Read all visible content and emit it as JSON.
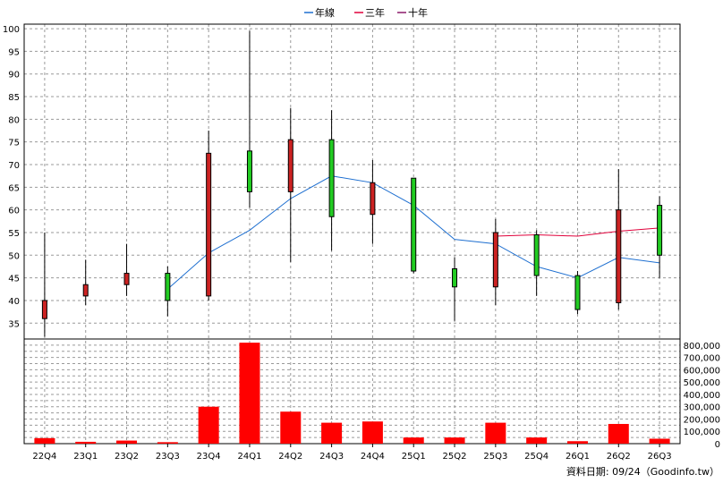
{
  "chart_data": {
    "type": "candlestick-with-volume",
    "legend": [
      {
        "label": "年線",
        "color": "#1e6fd0"
      },
      {
        "label": "三年",
        "color": "#e0003a"
      },
      {
        "label": "十年",
        "color": "#8a1a6a"
      }
    ],
    "legend_placement": "top-center",
    "grid": true,
    "categories": [
      "22Q4",
      "23Q1",
      "23Q2",
      "23Q3",
      "23Q4",
      "24Q1",
      "24Q2",
      "24Q3",
      "24Q4",
      "25Q1",
      "25Q2",
      "25Q3",
      "25Q4",
      "26Q1",
      "26Q2",
      "26Q3"
    ],
    "price_axis": {
      "ylim": [
        31.5,
        101
      ],
      "ticks": [
        35,
        40,
        45,
        50,
        55,
        60,
        65,
        70,
        75,
        80,
        85,
        90,
        95,
        100
      ]
    },
    "volume_axis": {
      "ylim": [
        0,
        850000
      ],
      "ticks": [
        0,
        100000,
        200000,
        300000,
        400000,
        500000,
        600000,
        700000,
        800000
      ],
      "tick_labels": [
        "0",
        "100,000",
        "200,000",
        "300,000",
        "400,000",
        "500,000",
        "600,000",
        "700,000",
        "800,000"
      ]
    },
    "candles": [
      {
        "open": 40,
        "close": 36,
        "high": 55,
        "low": 32
      },
      {
        "open": 43.5,
        "close": 41,
        "high": 49,
        "low": 39
      },
      {
        "open": 46,
        "close": 43.5,
        "high": 52.5,
        "low": 41
      },
      {
        "open": 40,
        "close": 46,
        "high": 47.5,
        "low": 36.5
      },
      {
        "open": 72.5,
        "close": 41,
        "high": 77.5,
        "low": 40
      },
      {
        "open": 64,
        "close": 73,
        "high": 99.5,
        "low": 60.5
      },
      {
        "open": 75.5,
        "close": 64,
        "high": 82.5,
        "low": 48.5
      },
      {
        "open": 58.5,
        "close": 75.5,
        "high": 82,
        "low": 51
      },
      {
        "open": 66,
        "close": 59,
        "high": 71,
        "low": 52.5
      },
      {
        "open": 46.5,
        "close": 67,
        "high": 67,
        "low": 46
      },
      {
        "open": 43,
        "close": 47,
        "high": 49.5,
        "low": 35.5
      },
      {
        "open": 55,
        "close": 43,
        "high": 58,
        "low": 39
      },
      {
        "open": 45.5,
        "close": 54.5,
        "high": 55.5,
        "low": 41
      },
      {
        "open": 38,
        "close": 45.5,
        "high": 46.5,
        "low": 37
      },
      {
        "open": 60,
        "close": 39.5,
        "high": 69,
        "low": 38
      },
      {
        "open": 50,
        "close": 61,
        "high": 63,
        "low": 45
      }
    ],
    "up_color": "#22cc22",
    "down_color": "#cc2222",
    "series": [
      {
        "name": "年線",
        "values": [
          null,
          null,
          null,
          42.5,
          50.5,
          55.5,
          62.5,
          67.5,
          66,
          61,
          53.5,
          52.5,
          47.5,
          45,
          49.5,
          48.3
        ]
      },
      {
        "name": "三年",
        "values": [
          null,
          null,
          null,
          null,
          null,
          null,
          null,
          null,
          null,
          null,
          null,
          54.2,
          54.5,
          54.2,
          55.3,
          56
        ]
      }
    ],
    "volume": [
      45000,
      15000,
      25000,
      12000,
      300000,
      820000,
      260000,
      170000,
      180000,
      50000,
      50000,
      170000,
      50000,
      20000,
      160000,
      40000
    ],
    "volume_color": "#ff0000"
  },
  "credit": "資料日期: 09/24（Goodinfo.tw）"
}
